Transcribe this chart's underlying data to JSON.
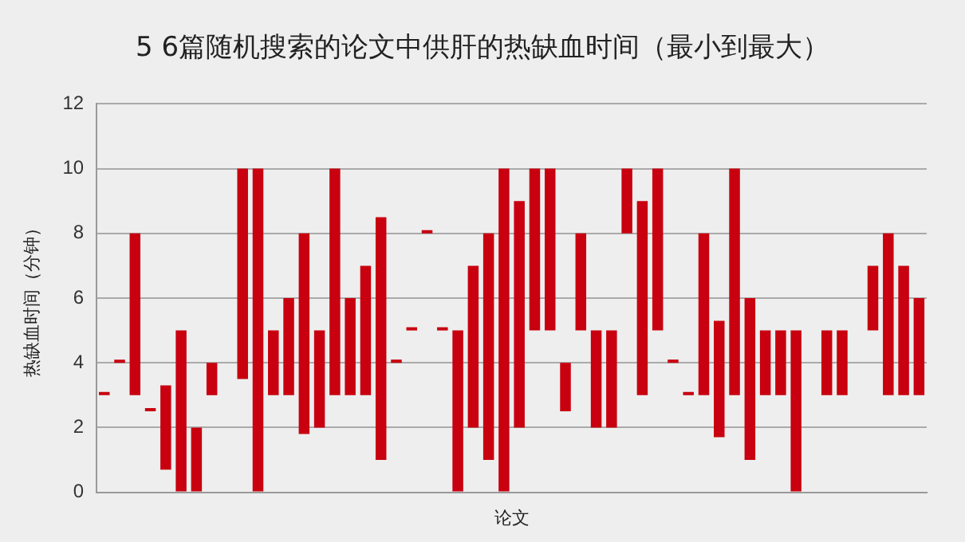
{
  "chart_data": {
    "type": "bar",
    "title": "5 6篇随机搜索的论文中供肝的热缺血时间（最小到最大）",
    "xlabel": "论文",
    "ylabel": "热缺血时间（分钟）",
    "categories": [
      null,
      null,
      null,
      null,
      null,
      null,
      null,
      null,
      null,
      null,
      null,
      null,
      null,
      null,
      null,
      null,
      null,
      null,
      null,
      null,
      null,
      null,
      null,
      null,
      null,
      null,
      null,
      null,
      null,
      null,
      null,
      null,
      null,
      null,
      null,
      null,
      null,
      null,
      null,
      null,
      null,
      null,
      null,
      null,
      null,
      null,
      null,
      null,
      null,
      null,
      null,
      null,
      null,
      null
    ],
    "base": [
      3,
      4,
      3,
      2.5,
      0.7,
      0,
      0,
      3,
      null,
      3.5,
      0,
      3,
      3,
      1.8,
      2,
      3,
      3,
      3,
      1,
      4,
      5,
      8,
      5,
      0,
      2,
      1,
      0,
      2,
      5,
      5,
      2.5,
      5,
      2,
      2,
      8,
      3,
      5,
      4,
      3,
      3,
      1.7,
      3,
      1,
      3,
      3,
      0,
      null,
      3,
      3,
      null,
      5,
      3,
      3,
      3
    ],
    "values": [
      0.1,
      0.1,
      5,
      0.1,
      2.6,
      5,
      2,
      1,
      null,
      6.5,
      10,
      2,
      3,
      6.2,
      3,
      7,
      3,
      4,
      7.5,
      0.1,
      0.1,
      0.1,
      0.1,
      5,
      5,
      7,
      10,
      7,
      5,
      5,
      1.5,
      3,
      3,
      3,
      2,
      6,
      5,
      0.1,
      0.1,
      5,
      3.6,
      7,
      5,
      2,
      2,
      5,
      null,
      2,
      2,
      null,
      2,
      5,
      4,
      3
    ],
    "color": "#c8000f",
    "ylim": [
      0,
      12
    ],
    "yticks": [
      0,
      2,
      4,
      6,
      8,
      10,
      12
    ],
    "grid": "y",
    "legend": false
  }
}
